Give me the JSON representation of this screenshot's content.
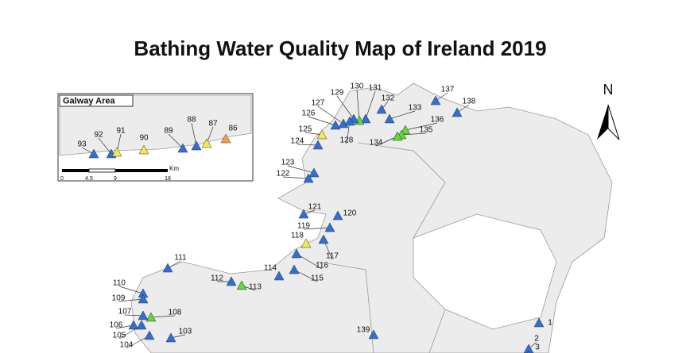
{
  "title": "Bathing Water Quality Map of Ireland 2019",
  "north": "N",
  "sites": [
    {
      "label": "137",
      "color": "#2f6fd8"
    },
    {
      "label": "138",
      "color": "#2f6fd8"
    },
    {
      "label": "136",
      "color": "#5fd83c"
    },
    {
      "label": "135",
      "color": "#5fd83c"
    },
    {
      "label": "134",
      "color": "#5fd83c"
    },
    {
      "label": "133",
      "color": "#2f6fd8"
    },
    {
      "label": "132",
      "color": "#2f6fd8"
    },
    {
      "label": "131",
      "color": "#2f6fd8"
    },
    {
      "label": "130",
      "color": "#5fd83c"
    },
    {
      "label": "129",
      "color": "#2f6fd8"
    },
    {
      "label": "127",
      "color": "#2f6fd8"
    },
    {
      "label": "126",
      "color": "#2f6fd8"
    },
    {
      "label": "128",
      "color": "#2f6fd8"
    },
    {
      "label": "125",
      "color": "#f3e84c"
    },
    {
      "label": "124",
      "color": "#2f6fd8"
    },
    {
      "label": "123",
      "color": "#2f6fd8"
    },
    {
      "label": "122",
      "color": "#2f6fd8"
    },
    {
      "label": "121",
      "color": "#2f6fd8"
    },
    {
      "label": "120",
      "color": "#2f6fd8"
    },
    {
      "label": "119",
      "color": "#2f6fd8"
    },
    {
      "label": "118",
      "color": "#f3e84c"
    },
    {
      "label": "117",
      "color": "#2f6fd8"
    },
    {
      "label": "116",
      "color": "#2f6fd8"
    },
    {
      "label": "115",
      "color": "#2f6fd8"
    },
    {
      "label": "114",
      "color": "#2f6fd8"
    },
    {
      "label": "113",
      "color": "#5fd83c"
    },
    {
      "label": "112",
      "color": "#2f6fd8"
    },
    {
      "label": "111",
      "color": "#2f6fd8"
    },
    {
      "label": "110",
      "color": "#2f6fd8"
    },
    {
      "label": "109",
      "color": "#2f6fd8"
    },
    {
      "label": "108",
      "color": "#5fd83c"
    },
    {
      "label": "107",
      "color": "#2f6fd8"
    },
    {
      "label": "106",
      "color": "#2f6fd8"
    },
    {
      "label": "105",
      "color": "#2f6fd8"
    },
    {
      "label": "104",
      "color": "#2f6fd8"
    },
    {
      "label": "103",
      "color": "#2f6fd8"
    },
    {
      "label": "139",
      "color": "#2f6fd8"
    },
    {
      "label": "1",
      "color": "#2f6fd8"
    },
    {
      "label": "2",
      "color": "#2f6fd8"
    },
    {
      "label": "3",
      "color": "#2f6fd8"
    }
  ],
  "inset": {
    "title": "Galway Area",
    "sites": [
      {
        "label": "93",
        "color": "#2f6fd8"
      },
      {
        "label": "92",
        "color": "#2f6fd8"
      },
      {
        "label": "91",
        "color": "#f3e84c"
      },
      {
        "label": "90",
        "color": "#f3e84c"
      },
      {
        "label": "89",
        "color": "#2f6fd8"
      },
      {
        "label": "88",
        "color": "#2f6fd8"
      },
      {
        "label": "87",
        "color": "#f3e84c"
      },
      {
        "label": "86",
        "color": "#f5a040"
      }
    ],
    "scale": {
      "ticks": [
        "0",
        "4.5",
        "9",
        "18"
      ],
      "unit": "Km"
    }
  }
}
